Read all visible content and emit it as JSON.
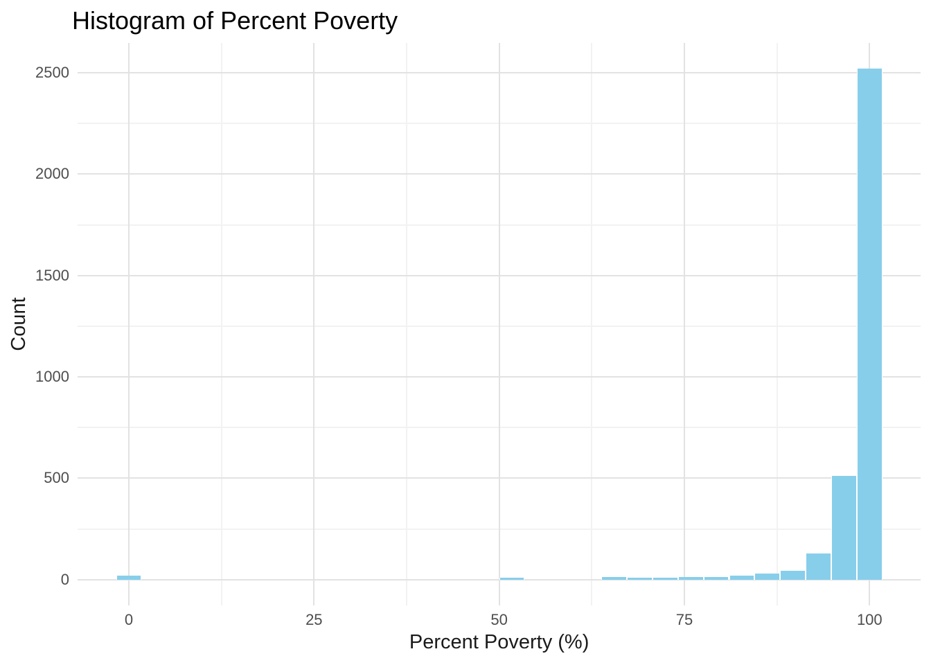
{
  "chart_data": {
    "type": "bar",
    "subtype": "histogram",
    "title": "Histogram of Percent Poverty",
    "xlabel": "Percent Poverty (%)",
    "ylabel": "Count",
    "x_ticks": [
      0,
      25,
      50,
      75,
      100
    ],
    "y_ticks": [
      0,
      500,
      1000,
      1500,
      2000,
      2500
    ],
    "x_minor_ticks": [
      12.5,
      37.5,
      62.5,
      87.5
    ],
    "y_minor_ticks": [
      250,
      750,
      1250,
      1750,
      2250
    ],
    "xlim": [
      -6.9,
      106.9
    ],
    "ylim": [
      -126,
      2647
    ],
    "bin_width": 3.4483,
    "bins": [
      {
        "center": 0.0,
        "count": 18
      },
      {
        "center": 51.72,
        "count": 8
      },
      {
        "center": 65.52,
        "count": 11
      },
      {
        "center": 68.97,
        "count": 10
      },
      {
        "center": 72.41,
        "count": 10
      },
      {
        "center": 75.86,
        "count": 14
      },
      {
        "center": 79.31,
        "count": 13
      },
      {
        "center": 82.76,
        "count": 19
      },
      {
        "center": 86.21,
        "count": 31
      },
      {
        "center": 89.66,
        "count": 42
      },
      {
        "center": 93.1,
        "count": 128
      },
      {
        "center": 96.55,
        "count": 511
      },
      {
        "center": 100.0,
        "count": 2521
      }
    ],
    "grid": true,
    "legend_position": "none"
  },
  "colors": {
    "bar_fill": "#87CEEB",
    "grid_major": "#E2E2E2",
    "grid_minor": "#F2F2F2",
    "tick_label": "#4D4D4D",
    "axis_title": "#1A1A1A",
    "title_text": "#000000",
    "background": "#FFFFFF"
  }
}
